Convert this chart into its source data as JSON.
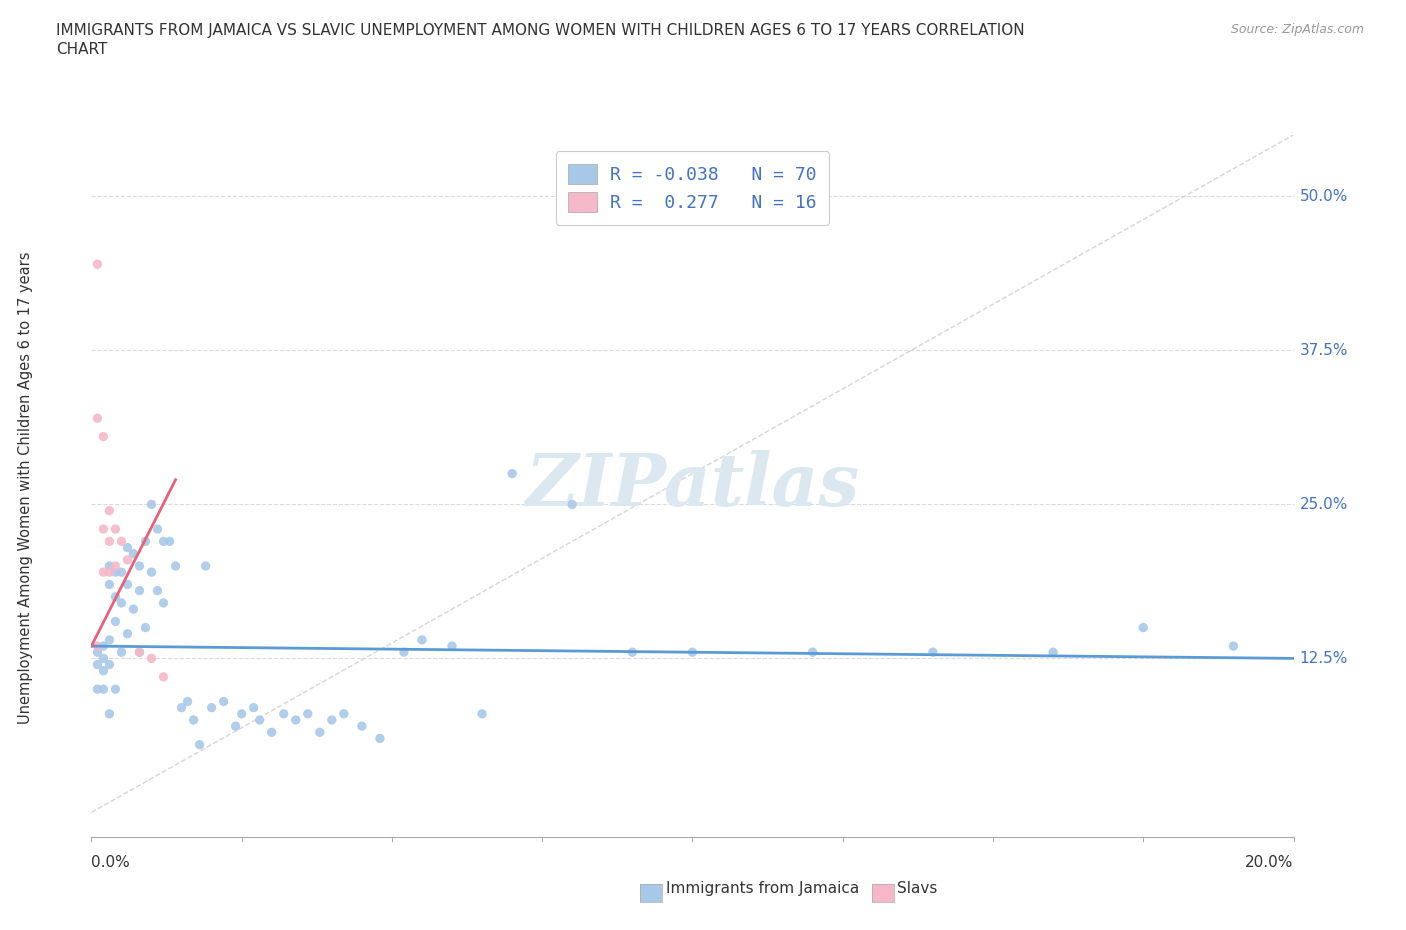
{
  "title_line1": "IMMIGRANTS FROM JAMAICA VS SLAVIC UNEMPLOYMENT AMONG WOMEN WITH CHILDREN AGES 6 TO 17 YEARS CORRELATION",
  "title_line2": "CHART",
  "source": "Source: ZipAtlas.com",
  "ylabel": "Unemployment Among Women with Children Ages 6 to 17 years",
  "legend_entry1": "R = -0.038   N = 70",
  "legend_entry2": "R =  0.277   N = 16",
  "jamaica_color": "#a8c8e8",
  "slavs_color": "#f4b8c8",
  "jamaica_trend_color": "#5b9bd5",
  "slavs_trend_color": "#e8607a",
  "diag_color": "#cccccc",
  "grid_color": "#cccccc",
  "right_label_color": "#4472c4",
  "text_color": "#333333",
  "source_color": "#999999",
  "watermark_text": "ZIPatlas",
  "watermark_color": "#dce8f0",
  "xlim": [
    0.0,
    0.2
  ],
  "ylim": [
    -0.02,
    0.55
  ],
  "right_ytick_vals": [
    0.0,
    0.125,
    0.25,
    0.375,
    0.5
  ],
  "right_yticklabels": [
    "",
    "12.5%",
    "25.0%",
    "37.5%",
    "50.0%"
  ],
  "jamaica_x": [
    0.001,
    0.001,
    0.001,
    0.002,
    0.002,
    0.002,
    0.002,
    0.003,
    0.003,
    0.003,
    0.003,
    0.003,
    0.004,
    0.004,
    0.004,
    0.004,
    0.005,
    0.005,
    0.005,
    0.006,
    0.006,
    0.006,
    0.007,
    0.007,
    0.008,
    0.008,
    0.008,
    0.009,
    0.009,
    0.01,
    0.01,
    0.011,
    0.011,
    0.012,
    0.012,
    0.013,
    0.014,
    0.015,
    0.016,
    0.017,
    0.018,
    0.019,
    0.02,
    0.022,
    0.024,
    0.025,
    0.027,
    0.028,
    0.03,
    0.032,
    0.034,
    0.036,
    0.038,
    0.04,
    0.042,
    0.045,
    0.048,
    0.052,
    0.055,
    0.06,
    0.065,
    0.07,
    0.08,
    0.09,
    0.1,
    0.12,
    0.14,
    0.16,
    0.175,
    0.19
  ],
  "jamaica_y": [
    0.13,
    0.12,
    0.1,
    0.135,
    0.125,
    0.115,
    0.1,
    0.2,
    0.185,
    0.14,
    0.12,
    0.08,
    0.195,
    0.175,
    0.155,
    0.1,
    0.195,
    0.17,
    0.13,
    0.215,
    0.185,
    0.145,
    0.21,
    0.165,
    0.2,
    0.18,
    0.13,
    0.22,
    0.15,
    0.25,
    0.195,
    0.23,
    0.18,
    0.22,
    0.17,
    0.22,
    0.2,
    0.085,
    0.09,
    0.075,
    0.055,
    0.2,
    0.085,
    0.09,
    0.07,
    0.08,
    0.085,
    0.075,
    0.065,
    0.08,
    0.075,
    0.08,
    0.065,
    0.075,
    0.08,
    0.07,
    0.06,
    0.13,
    0.14,
    0.135,
    0.08,
    0.275,
    0.25,
    0.13,
    0.13,
    0.13,
    0.13,
    0.13,
    0.15,
    0.135
  ],
  "slavs_x": [
    0.001,
    0.001,
    0.001,
    0.002,
    0.002,
    0.002,
    0.003,
    0.003,
    0.003,
    0.004,
    0.004,
    0.005,
    0.006,
    0.008,
    0.01,
    0.012
  ],
  "slavs_y": [
    0.445,
    0.32,
    0.135,
    0.305,
    0.23,
    0.195,
    0.245,
    0.22,
    0.195,
    0.23,
    0.2,
    0.22,
    0.205,
    0.13,
    0.125,
    0.11
  ],
  "jamaica_trend_x0": 0.0,
  "jamaica_trend_x1": 0.2,
  "jamaica_trend_y0": 0.135,
  "jamaica_trend_y1": 0.125,
  "slavs_trend_x0": 0.0,
  "slavs_trend_x1": 0.014,
  "slavs_trend_y0": 0.135,
  "slavs_trend_y1": 0.27
}
